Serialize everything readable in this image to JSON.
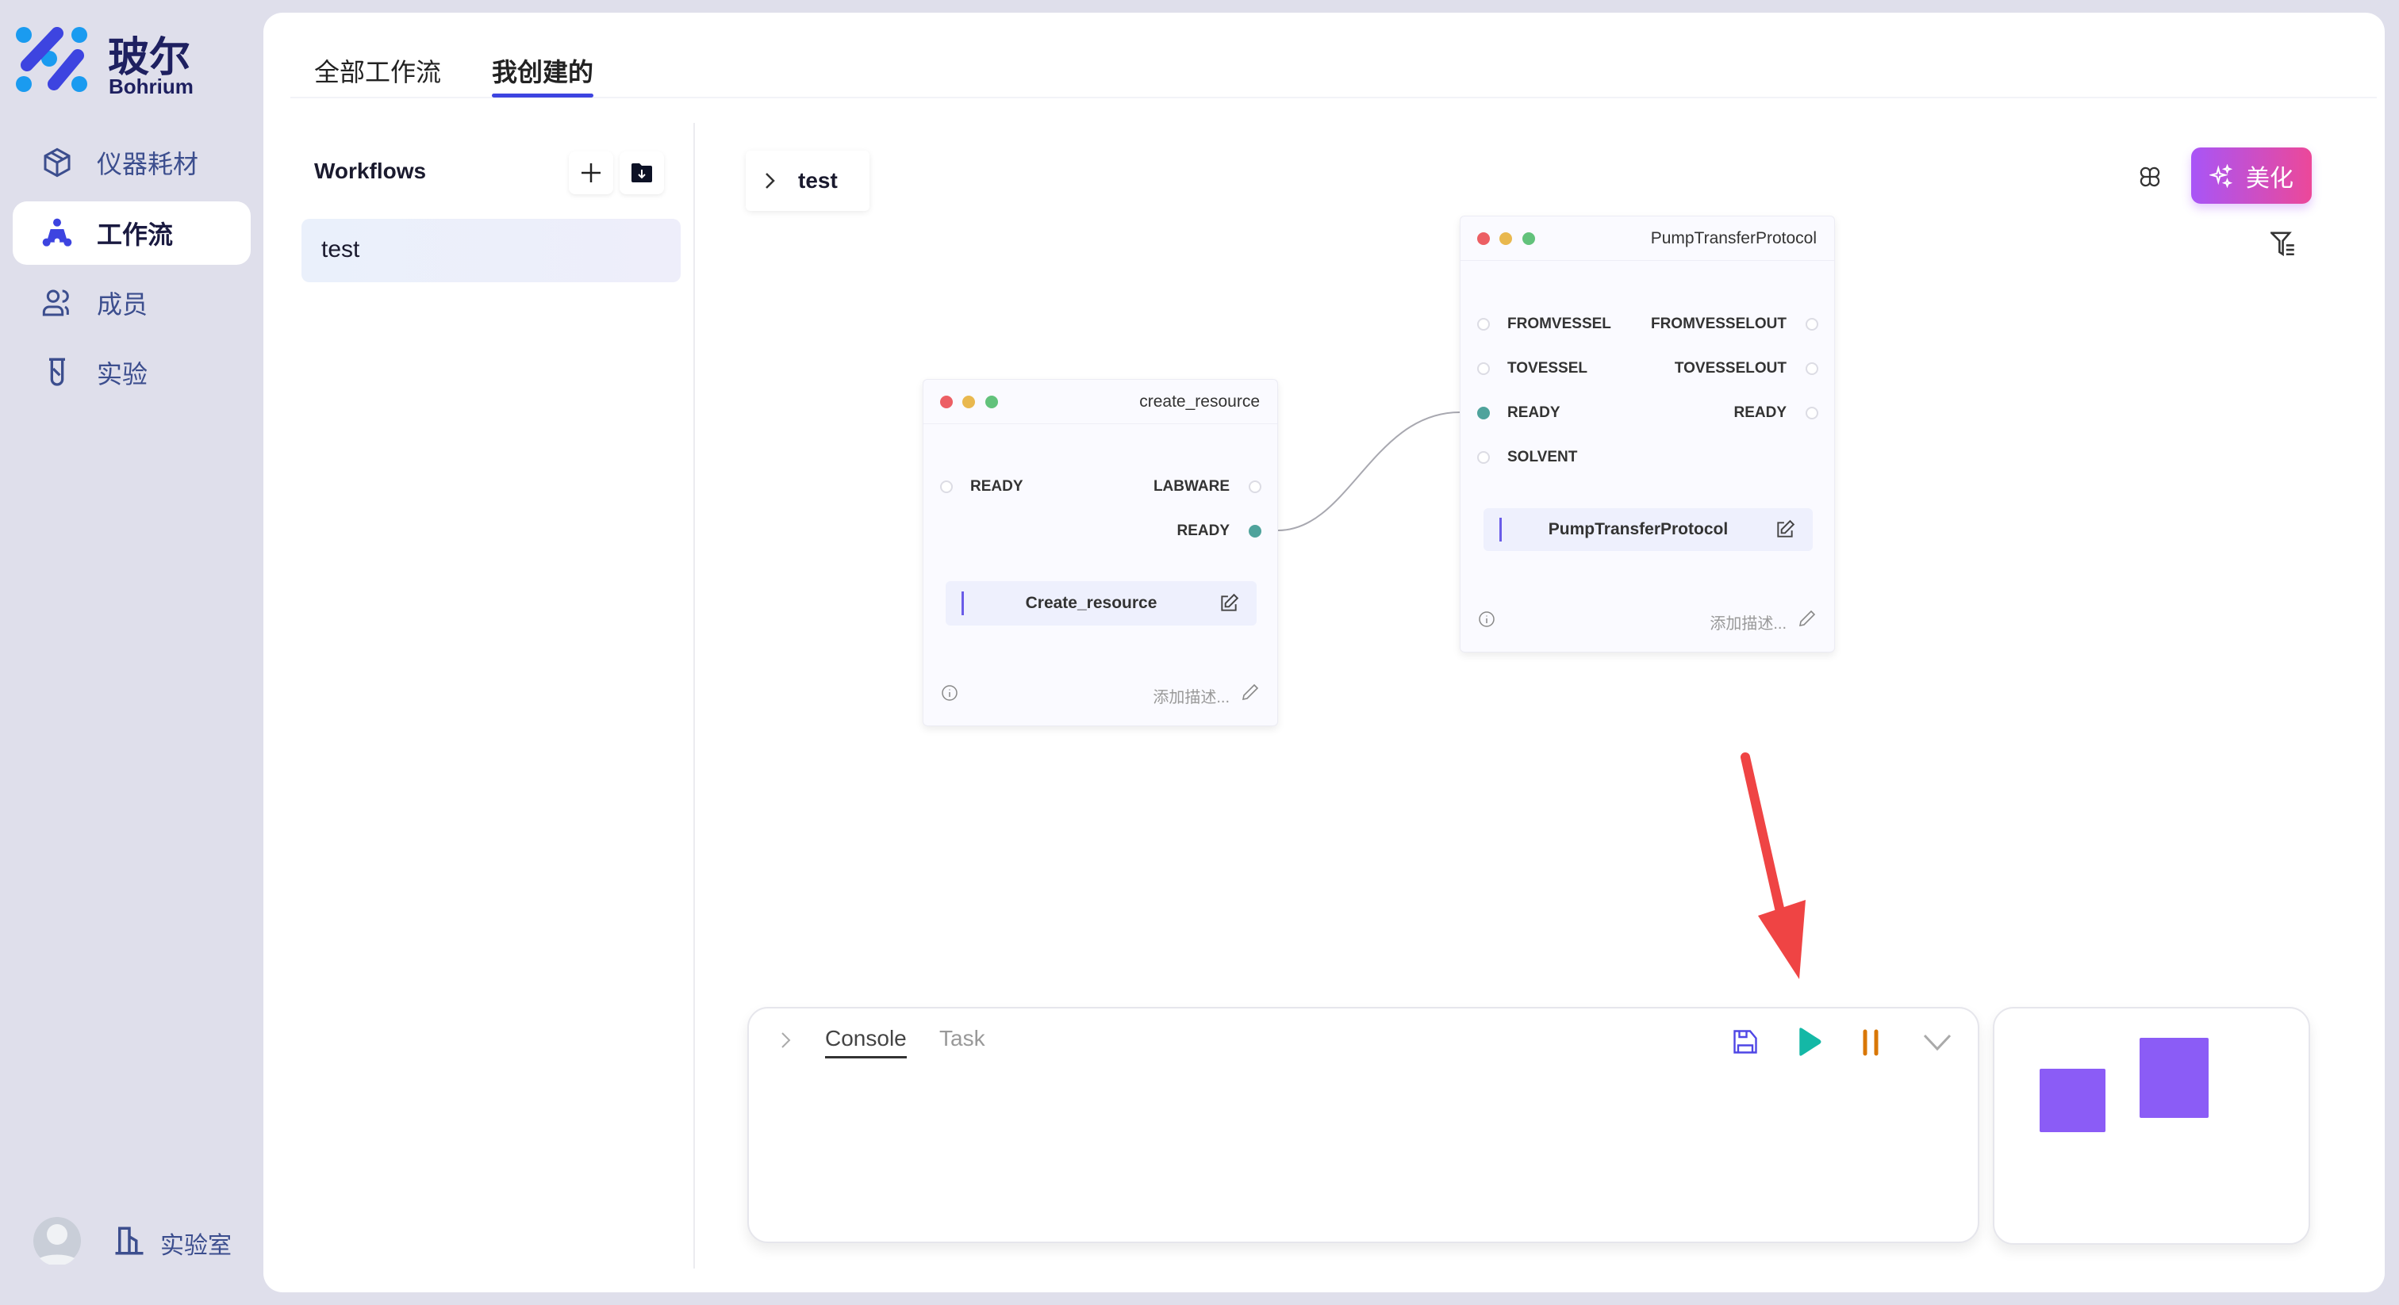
{
  "brand": {
    "name_cn": "玻尔",
    "name_en": "Bohrium"
  },
  "sidebar": {
    "items": [
      {
        "label": "仪器耗材",
        "icon": "cube-icon"
      },
      {
        "label": "工作流",
        "icon": "workflow-icon",
        "active": true
      },
      {
        "label": "成员",
        "icon": "users-icon"
      },
      {
        "label": "实验",
        "icon": "test-tube-icon"
      }
    ],
    "lab_label": "实验室"
  },
  "tabs": [
    {
      "label": "全部工作流"
    },
    {
      "label": "我创建的",
      "active": true
    }
  ],
  "workflows": {
    "title": "Workflows",
    "items": [
      {
        "label": "test",
        "selected": true
      }
    ]
  },
  "canvas": {
    "breadcrumb": "test",
    "beautify_label": "美化",
    "nodes": [
      {
        "title": "create_resource",
        "inputs": [
          "READY"
        ],
        "outputs": [
          "LABWARE",
          "READY"
        ],
        "name": "Create_resource",
        "desc_placeholder": "添加描述..."
      },
      {
        "title": "PumpTransferProtocol",
        "inputs": [
          "FROMVESSEL",
          "TOVESSEL",
          "READY",
          "SOLVENT"
        ],
        "outputs": [
          "FROMVESSELOUT",
          "TOVESSELOUT",
          "READY"
        ],
        "name": "PumpTransferProtocol",
        "desc_placeholder": "添加描述..."
      }
    ],
    "edges": [
      {
        "from": "create_resource.READY",
        "to": "PumpTransferProtocol.READY"
      }
    ]
  },
  "console": {
    "tabs": [
      {
        "label": "Console",
        "active": true
      },
      {
        "label": "Task"
      }
    ]
  },
  "colors": {
    "accent": "#3d44e0",
    "play": "#14b8a6",
    "pause": "#d97706",
    "minimap": "#8b5cf6",
    "port_active": "#4fa39c",
    "annotation_arrow": "#ef4444"
  }
}
